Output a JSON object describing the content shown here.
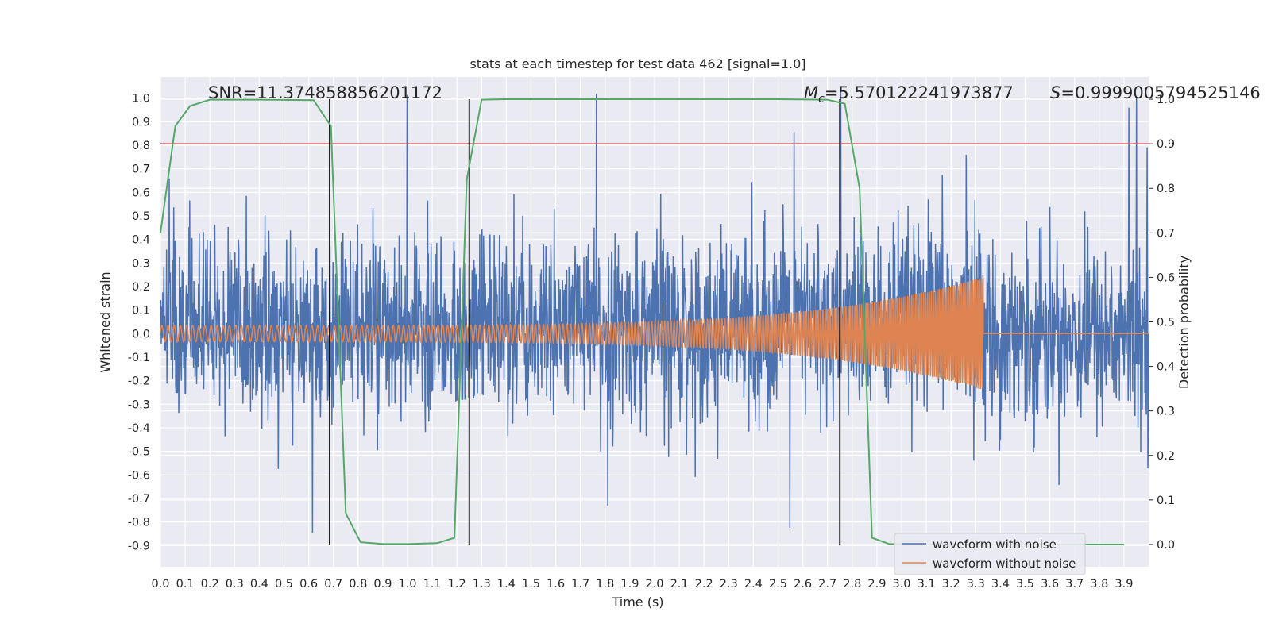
{
  "chart_data": {
    "type": "line",
    "title": "stats at each timestep for test data 462 [signal=1.0]",
    "xlabel": "Time (s)",
    "ylabel": "Whitened strain",
    "y2label": "Detection probability",
    "xlim": [
      0.0,
      4.0
    ],
    "ylim": [
      -0.99,
      1.09
    ],
    "y2lim": [
      -0.05,
      1.05
    ],
    "x_ticks": [
      "0.0",
      "0.1",
      "0.2",
      "0.3",
      "0.4",
      "0.5",
      "0.6",
      "0.7",
      "0.8",
      "0.9",
      "1.0",
      "1.1",
      "1.2",
      "1.3",
      "1.4",
      "1.5",
      "1.6",
      "1.7",
      "1.8",
      "1.9",
      "2.0",
      "2.1",
      "2.2",
      "2.3",
      "2.4",
      "2.5",
      "2.6",
      "2.7",
      "2.8",
      "2.9",
      "3.0",
      "3.1",
      "3.2",
      "3.3",
      "3.4",
      "3.5",
      "3.6",
      "3.7",
      "3.8",
      "3.9"
    ],
    "y_ticks": [
      "1.0",
      "0.9",
      "0.8",
      "0.7",
      "0.6",
      "0.5",
      "0.4",
      "0.3",
      "0.2",
      "0.1",
      "0.0",
      "-0.1",
      "-0.2",
      "-0.3",
      "-0.4",
      "-0.5",
      "-0.6",
      "-0.7",
      "-0.8",
      "-0.9"
    ],
    "y2_ticks": [
      "1.0",
      "0.9",
      "0.8",
      "0.7",
      "0.6",
      "0.5",
      "0.4",
      "0.3",
      "0.2",
      "0.1",
      "0.0"
    ],
    "annotations": {
      "snr": "SNR=11.374858856201172",
      "mc_symbol": "M",
      "mc_sub": "c",
      "mc_value": "=5.570122241973877",
      "s_symbol": "S",
      "s_value": "=0.9999005794525146"
    },
    "grid": true,
    "legend_position": "lower-right",
    "threshold_y2": 0.9,
    "vertical_lines_x": [
      0.685,
      1.25,
      2.75
    ],
    "series": [
      {
        "name": "waveform with noise",
        "color": "#4c72b0",
        "noise_std": 0.19,
        "t_end": 4.0
      },
      {
        "name": "waveform without noise",
        "color": "#dd8452",
        "amplitude_start": 0.035,
        "amplitude_peak": 0.24,
        "t_merger": 3.33,
        "freq_start": 40,
        "freq_end": 140
      },
      {
        "name": "detection probability",
        "color": "#55a868",
        "axis": "right",
        "x": [
          0.0,
          0.06,
          0.12,
          0.2,
          0.4,
          0.62,
          0.69,
          0.75,
          0.81,
          0.9,
          1.0,
          1.12,
          1.19,
          1.24,
          1.3,
          1.4,
          1.6,
          2.0,
          2.5,
          2.7,
          2.77,
          2.83,
          2.88,
          2.95,
          3.1,
          3.5,
          3.9
        ],
        "y": [
          0.7,
          0.94,
          0.985,
          0.999,
          0.999,
          0.998,
          0.94,
          0.07,
          0.005,
          0.001,
          0.001,
          0.003,
          0.015,
          0.82,
          0.999,
          1.0,
          1.0,
          1.0,
          1.0,
          0.999,
          0.99,
          0.8,
          0.015,
          0.001,
          0.0,
          0.0,
          0.0
        ]
      }
    ],
    "threshold_color": "#c44e52",
    "vline_color": "#000000"
  }
}
